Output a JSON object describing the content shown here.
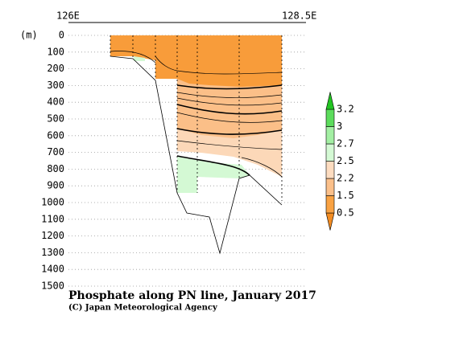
{
  "chart_data": {
    "type": "section",
    "title": "Phosphate along PN line, January 2017",
    "credit": "(C) Japan Meteorological Agency",
    "y_label": "(m)",
    "x_labels": [
      "126E",
      "128.5E"
    ],
    "ylim": [
      0,
      1500
    ],
    "yticks": [
      0,
      100,
      200,
      300,
      400,
      500,
      600,
      700,
      800,
      900,
      1000,
      1100,
      1200,
      1300,
      1400,
      1500
    ],
    "grid": true,
    "colorbar": {
      "levels": [
        0.5,
        1.5,
        2.2,
        2.5,
        2.7,
        3.0,
        3.2
      ],
      "colors": [
        "#f38c22",
        "#f9a243",
        "#fbc08a",
        "#fddcc0",
        "#d4f9d4",
        "#a3efa3",
        "#5cdc5c",
        "#22c422"
      ]
    }
  }
}
